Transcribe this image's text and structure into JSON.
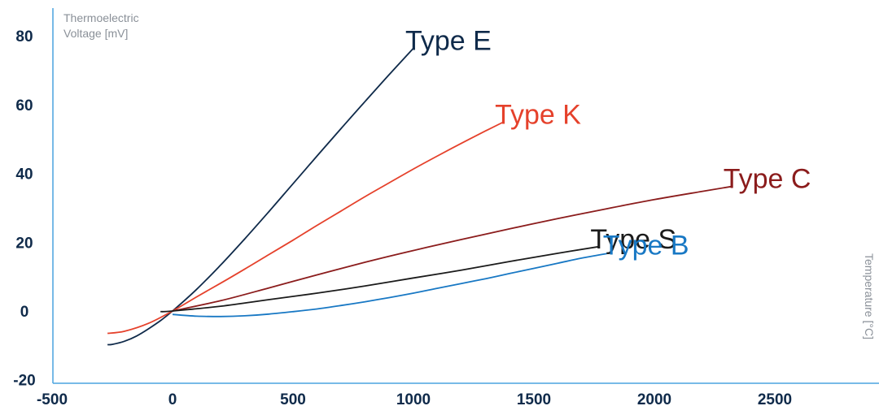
{
  "chart_data": {
    "type": "line",
    "ylabel_lines": [
      "Thermoelectric",
      "Voltage [mV]"
    ],
    "xlabel": "Temperature [°C]",
    "xlim": [
      -500,
      2800
    ],
    "ylim": [
      -20,
      90
    ],
    "x_ticks": [
      -500,
      0,
      500,
      1000,
      1500,
      2000,
      2500
    ],
    "y_ticks": [
      -20,
      0,
      20,
      40,
      60,
      80
    ],
    "grid": false,
    "legend": "inline labels at line ends",
    "series": [
      {
        "name": "Type E",
        "color": "#0f2a4a",
        "points": [
          [
            -270,
            -9.8
          ],
          [
            -250,
            -9.7
          ],
          [
            -200,
            -8.8
          ],
          [
            -150,
            -7.3
          ],
          [
            -100,
            -5.2
          ],
          [
            -50,
            -2.8
          ],
          [
            0,
            0
          ],
          [
            100,
            6.3
          ],
          [
            200,
            13.4
          ],
          [
            300,
            21.0
          ],
          [
            400,
            28.9
          ],
          [
            500,
            37.0
          ],
          [
            600,
            45.1
          ],
          [
            700,
            53.1
          ],
          [
            800,
            61.0
          ],
          [
            900,
            68.8
          ],
          [
            1000,
            76.4
          ]
        ],
        "label_at": [
          1000,
          76.4
        ]
      },
      {
        "name": "Type K",
        "color": "#e5412b",
        "points": [
          [
            -270,
            -6.5
          ],
          [
            -200,
            -5.9
          ],
          [
            -100,
            -3.6
          ],
          [
            0,
            0
          ],
          [
            100,
            4.1
          ],
          [
            200,
            8.1
          ],
          [
            300,
            12.2
          ],
          [
            400,
            16.4
          ],
          [
            500,
            20.6
          ],
          [
            600,
            24.9
          ],
          [
            700,
            29.1
          ],
          [
            800,
            33.3
          ],
          [
            900,
            37.3
          ],
          [
            1000,
            41.3
          ],
          [
            1100,
            45.1
          ],
          [
            1200,
            48.8
          ],
          [
            1300,
            52.4
          ],
          [
            1372,
            54.9
          ]
        ],
        "label_at": [
          1372,
          54.9
        ]
      },
      {
        "name": "Type C",
        "color": "#8b1c1c",
        "points": [
          [
            0,
            0
          ],
          [
            200,
            3.0
          ],
          [
            400,
            6.7
          ],
          [
            600,
            10.5
          ],
          [
            800,
            14.2
          ],
          [
            1000,
            17.6
          ],
          [
            1200,
            20.8
          ],
          [
            1400,
            23.9
          ],
          [
            1600,
            26.9
          ],
          [
            1800,
            29.7
          ],
          [
            2000,
            32.4
          ],
          [
            2200,
            34.8
          ],
          [
            2320,
            36.2
          ]
        ],
        "label_at": [
          2320,
          36.2
        ]
      },
      {
        "name": "Type S",
        "color": "#1b1b1b",
        "points": [
          [
            -50,
            -0.2
          ],
          [
            0,
            0
          ],
          [
            200,
            1.4
          ],
          [
            400,
            3.3
          ],
          [
            600,
            5.2
          ],
          [
            800,
            7.3
          ],
          [
            1000,
            9.6
          ],
          [
            1200,
            11.9
          ],
          [
            1400,
            14.4
          ],
          [
            1600,
            16.8
          ],
          [
            1768,
            18.7
          ]
        ],
        "label_at": [
          1768,
          18.7
        ]
      },
      {
        "name": "Type B",
        "color": "#1878c4",
        "points": [
          [
            0,
            -1.0
          ],
          [
            100,
            -1.5
          ],
          [
            200,
            -1.6
          ],
          [
            300,
            -1.4
          ],
          [
            400,
            -0.9
          ],
          [
            500,
            -0.2
          ],
          [
            600,
            0.6
          ],
          [
            700,
            1.6
          ],
          [
            800,
            2.7
          ],
          [
            900,
            3.9
          ],
          [
            1000,
            5.2
          ],
          [
            1100,
            6.6
          ],
          [
            1200,
            8.0
          ],
          [
            1300,
            9.4
          ],
          [
            1400,
            10.9
          ],
          [
            1500,
            12.4
          ],
          [
            1600,
            13.9
          ],
          [
            1700,
            15.4
          ],
          [
            1820,
            16.9
          ]
        ],
        "label_at": [
          1820,
          16.9
        ]
      }
    ]
  }
}
